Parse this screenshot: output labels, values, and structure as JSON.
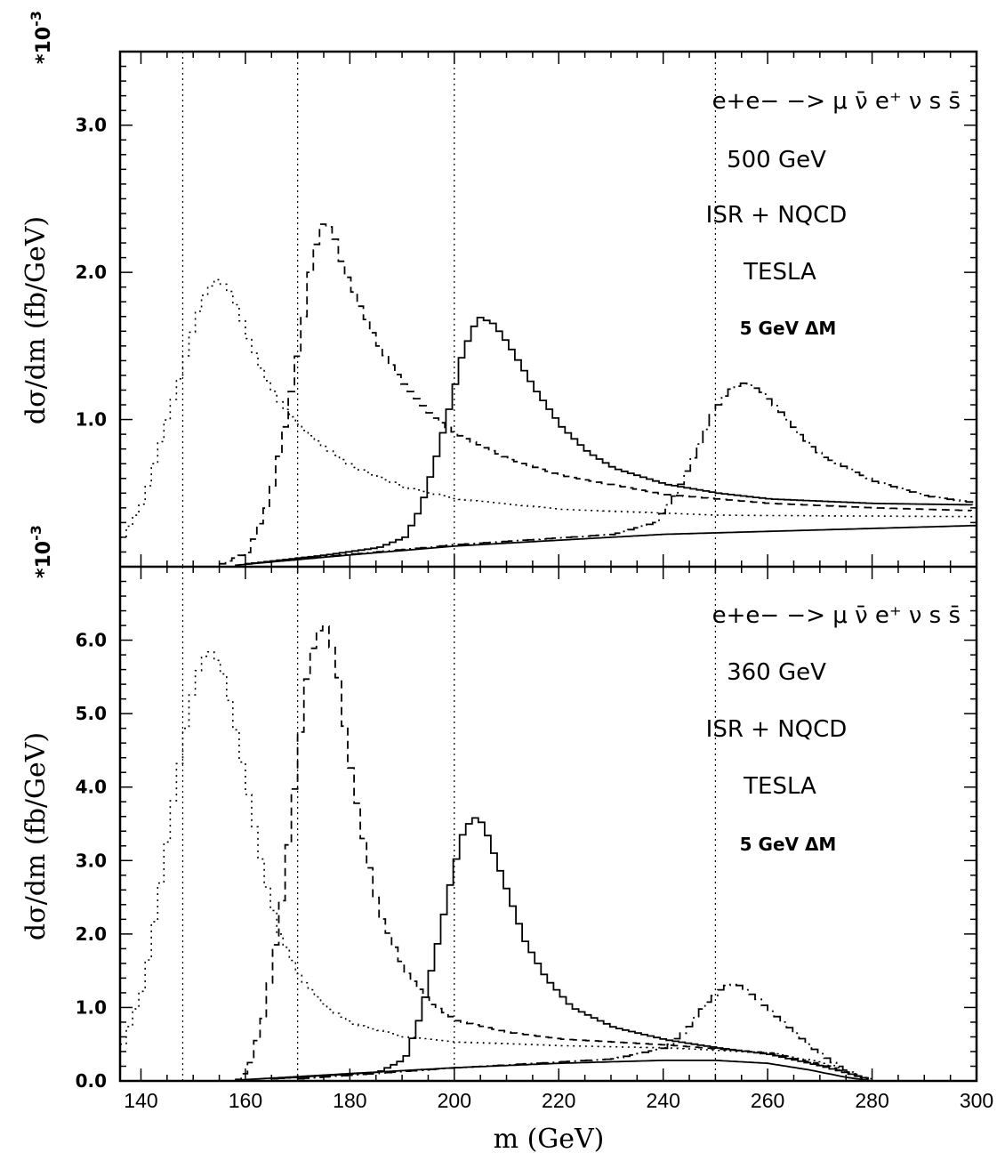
{
  "figure": {
    "xlabel": "m (GeV)",
    "ylabel": "dσ/dm (fb/GeV)",
    "multiplier": "*10",
    "multiplier_exp": "-3"
  },
  "chart_data": [
    {
      "type": "line",
      "panel": "top",
      "process": "e+e− −> μ ν̄ e⁺ ν s s̄",
      "energy": "500 GeV",
      "corrections": "ISR + NQCD",
      "collider": "TESLA",
      "bin_note": "5 GeV ΔM",
      "xlim": [
        136,
        300
      ],
      "ylim": [
        0,
        3.5
      ],
      "x_ticks": [
        140,
        160,
        180,
        200,
        220,
        240,
        260,
        280,
        300
      ],
      "y_ticks": [
        1.0,
        2.0,
        3.0
      ],
      "y_tick_labels": [
        "1.0",
        "2.0",
        "3.0"
      ],
      "vlines": [
        148,
        170,
        200,
        250
      ],
      "series": [
        {
          "style": "dotted",
          "peak": 154,
          "points": [
            [
              136,
              0.2
            ],
            [
              140,
              0.45
            ],
            [
              144,
              0.95
            ],
            [
              147,
              1.3
            ],
            [
              150,
              1.7
            ],
            [
              152,
              1.88
            ],
            [
              154,
              1.95
            ],
            [
              156,
              1.9
            ],
            [
              158,
              1.75
            ],
            [
              160,
              1.55
            ],
            [
              163,
              1.3
            ],
            [
              166,
              1.12
            ],
            [
              170,
              0.95
            ],
            [
              175,
              0.8
            ],
            [
              180,
              0.68
            ],
            [
              190,
              0.54
            ],
            [
              200,
              0.46
            ],
            [
              220,
              0.39
            ],
            [
              250,
              0.35
            ],
            [
              300,
              0.34
            ]
          ]
        },
        {
          "style": "dashed",
          "peak": 174,
          "points": [
            [
              155,
              0.02
            ],
            [
              160,
              0.1
            ],
            [
              164,
              0.45
            ],
            [
              167,
              0.95
            ],
            [
              170,
              1.55
            ],
            [
              172,
              2.05
            ],
            [
              174,
              2.33
            ],
            [
              176,
              2.3
            ],
            [
              178,
              2.05
            ],
            [
              181,
              1.8
            ],
            [
              185,
              1.5
            ],
            [
              190,
              1.23
            ],
            [
              195,
              1.03
            ],
            [
              200,
              0.9
            ],
            [
              210,
              0.73
            ],
            [
              220,
              0.62
            ],
            [
              240,
              0.49
            ],
            [
              260,
              0.43
            ],
            [
              280,
              0.4
            ],
            [
              300,
              0.38
            ]
          ]
        },
        {
          "style": "solid",
          "peak": 204,
          "points": [
            [
              160,
              0.02
            ],
            [
              175,
              0.08
            ],
            [
              185,
              0.13
            ],
            [
              190,
              0.2
            ],
            [
              193,
              0.4
            ],
            [
              196,
              0.75
            ],
            [
              199,
              1.15
            ],
            [
              201,
              1.45
            ],
            [
              204,
              1.7
            ],
            [
              207,
              1.65
            ],
            [
              210,
              1.5
            ],
            [
              215,
              1.2
            ],
            [
              220,
              0.95
            ],
            [
              225,
              0.78
            ],
            [
              230,
              0.67
            ],
            [
              240,
              0.56
            ],
            [
              250,
              0.5
            ],
            [
              260,
              0.46
            ],
            [
              280,
              0.43
            ],
            [
              300,
              0.42
            ]
          ]
        },
        {
          "style": "dash-dot",
          "peak": 254,
          "points": [
            [
              160,
              0.02
            ],
            [
              200,
              0.15
            ],
            [
              230,
              0.22
            ],
            [
              238,
              0.3
            ],
            [
              242,
              0.5
            ],
            [
              246,
              0.8
            ],
            [
              249,
              1.05
            ],
            [
              252,
              1.2
            ],
            [
              255,
              1.25
            ],
            [
              258,
              1.2
            ],
            [
              262,
              1.05
            ],
            [
              266,
              0.88
            ],
            [
              270,
              0.75
            ],
            [
              280,
              0.58
            ],
            [
              290,
              0.48
            ],
            [
              300,
              0.43
            ]
          ]
        },
        {
          "style": "solid",
          "peak": null,
          "points": [
            [
              158,
              0.01
            ],
            [
              180,
              0.08
            ],
            [
              200,
              0.14
            ],
            [
              220,
              0.18
            ],
            [
              240,
              0.22
            ],
            [
              260,
              0.24
            ],
            [
              280,
              0.26
            ],
            [
              300,
              0.28
            ]
          ]
        }
      ]
    },
    {
      "type": "line",
      "panel": "bottom",
      "process": "e+e− −> μ ν̄ e⁺ ν s s̄",
      "energy": "360 GeV",
      "corrections": "ISR + NQCD",
      "collider": "TESLA",
      "bin_note": "5 GeV ΔM",
      "xlim": [
        136,
        300
      ],
      "ylim": [
        0,
        7
      ],
      "x_ticks": [
        140,
        160,
        180,
        200,
        220,
        240,
        260,
        280,
        300
      ],
      "x_tick_labels": [
        "140",
        "160",
        "180",
        "200",
        "220",
        "240",
        "260",
        "280",
        "300"
      ],
      "y_ticks": [
        0.0,
        1.0,
        2.0,
        3.0,
        4.0,
        5.0,
        6.0
      ],
      "y_tick_labels": [
        "0.0",
        "1.0",
        "2.0",
        "3.0",
        "4.0",
        "5.0",
        "6.0"
      ],
      "vlines": [
        148,
        170,
        200,
        250
      ],
      "series": [
        {
          "style": "dotted",
          "peak": 152,
          "points": [
            [
              136,
              0.5
            ],
            [
              140,
              1.3
            ],
            [
              143,
              2.6
            ],
            [
              146,
              4.0
            ],
            [
              149,
              5.2
            ],
            [
              151,
              5.75
            ],
            [
              153,
              5.85
            ],
            [
              155,
              5.6
            ],
            [
              157,
              5.0
            ],
            [
              160,
              3.9
            ],
            [
              163,
              2.8
            ],
            [
              166,
              2.0
            ],
            [
              170,
              1.4
            ],
            [
              175,
              1.0
            ],
            [
              180,
              0.78
            ],
            [
              190,
              0.6
            ],
            [
              200,
              0.53
            ],
            [
              220,
              0.48
            ],
            [
              240,
              0.45
            ],
            [
              260,
              0.38
            ],
            [
              270,
              0.25
            ],
            [
              278,
              0.05
            ],
            [
              280,
              0.0
            ]
          ]
        },
        {
          "style": "dashed",
          "peak": 174,
          "points": [
            [
              158,
              0.02
            ],
            [
              160,
              0.15
            ],
            [
              163,
              0.9
            ],
            [
              166,
              2.2
            ],
            [
              169,
              4.1
            ],
            [
              171,
              5.4
            ],
            [
              173,
              6.1
            ],
            [
              175,
              6.2
            ],
            [
              177,
              5.6
            ],
            [
              179,
              4.5
            ],
            [
              182,
              3.3
            ],
            [
              185,
              2.3
            ],
            [
              190,
              1.5
            ],
            [
              195,
              1.05
            ],
            [
              200,
              0.82
            ],
            [
              210,
              0.66
            ],
            [
              220,
              0.57
            ],
            [
              240,
              0.49
            ],
            [
              260,
              0.38
            ],
            [
              270,
              0.22
            ],
            [
              278,
              0.04
            ],
            [
              280,
              0.0
            ]
          ]
        },
        {
          "style": "solid",
          "peak": 203,
          "points": [
            [
              165,
              0.03
            ],
            [
              185,
              0.12
            ],
            [
              190,
              0.3
            ],
            [
              193,
              0.9
            ],
            [
              196,
              1.8
            ],
            [
              199,
              2.8
            ],
            [
              201,
              3.35
            ],
            [
              203,
              3.6
            ],
            [
              205,
              3.5
            ],
            [
              207,
              3.1
            ],
            [
              210,
              2.5
            ],
            [
              213,
              1.9
            ],
            [
              217,
              1.4
            ],
            [
              222,
              1.0
            ],
            [
              230,
              0.73
            ],
            [
              240,
              0.56
            ],
            [
              250,
              0.45
            ],
            [
              260,
              0.36
            ],
            [
              270,
              0.2
            ],
            [
              278,
              0.04
            ],
            [
              280,
              0.0
            ]
          ]
        },
        {
          "style": "dash-dot",
          "peak": 252,
          "points": [
            [
              170,
              0.03
            ],
            [
              200,
              0.18
            ],
            [
              230,
              0.3
            ],
            [
              240,
              0.45
            ],
            [
              244,
              0.7
            ],
            [
              247,
              1.0
            ],
            [
              250,
              1.22
            ],
            [
              252,
              1.32
            ],
            [
              254,
              1.3
            ],
            [
              257,
              1.15
            ],
            [
              260,
              0.95
            ],
            [
              264,
              0.7
            ],
            [
              268,
              0.45
            ],
            [
              272,
              0.25
            ],
            [
              276,
              0.08
            ],
            [
              280,
              0.0
            ]
          ]
        },
        {
          "style": "solid",
          "peak": null,
          "points": [
            [
              158,
              0.01
            ],
            [
              180,
              0.1
            ],
            [
              200,
              0.18
            ],
            [
              220,
              0.24
            ],
            [
              240,
              0.28
            ],
            [
              250,
              0.28
            ],
            [
              260,
              0.24
            ],
            [
              268,
              0.15
            ],
            [
              275,
              0.05
            ],
            [
              280,
              0.0
            ]
          ]
        }
      ]
    }
  ]
}
